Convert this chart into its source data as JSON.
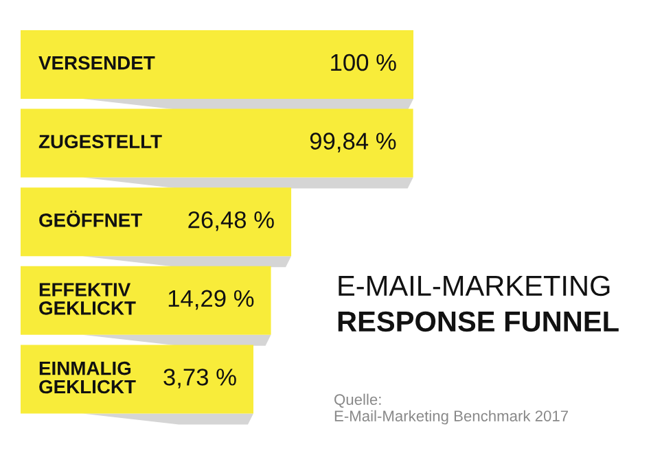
{
  "chart_data": {
    "type": "other",
    "title": "E-MAIL-MARKETING",
    "subtitle": "RESPONSE FUNNEL",
    "categories": [
      "VERSENDET",
      "ZUGESTELLT",
      "GEÖFFNET",
      "EFFEKTIV\nGEKLICKT",
      "EINMALIG\nGEKLICKT"
    ],
    "values": [
      100,
      99.84,
      26.48,
      14.29,
      3.73
    ],
    "value_labels": [
      "100 %",
      "99,84 %",
      "26,48 %",
      "14,29 %",
      "3,73 %"
    ],
    "color": "#f8ec3a",
    "annotations": [
      "Quelle:",
      "E-Mail-Marketing Benchmark 2017"
    ]
  }
}
